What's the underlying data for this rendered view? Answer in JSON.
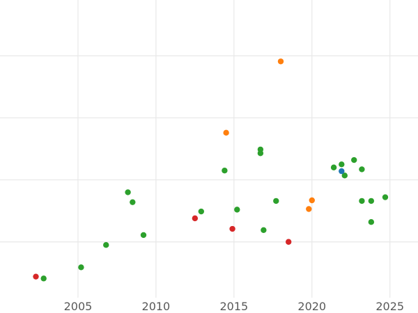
{
  "chart_data": {
    "type": "scatter",
    "title": "",
    "xlabel": "",
    "ylabel": "",
    "xlim": [
      2000.0,
      2026.8
    ],
    "ylim": [
      0.0,
      4.8
    ],
    "x_ticks": [
      2005,
      2010,
      2015,
      2020,
      2025
    ],
    "x_tick_labels": [
      "2005",
      "2010",
      "2015",
      "2020",
      "2025"
    ],
    "y_gridlines": [
      0.9,
      1.9,
      2.9,
      3.9
    ],
    "grid": true,
    "legend": "none",
    "series": [
      {
        "color": "#2ca02c",
        "points": [
          [
            2002.8,
            0.31
          ],
          [
            2005.2,
            0.49
          ],
          [
            2006.8,
            0.85
          ],
          [
            2008.2,
            1.7
          ],
          [
            2008.5,
            1.54
          ],
          [
            2009.2,
            1.01
          ],
          [
            2012.9,
            1.39
          ],
          [
            2014.4,
            2.05
          ],
          [
            2015.2,
            1.42
          ],
          [
            2016.7,
            2.39
          ],
          [
            2016.7,
            2.33
          ],
          [
            2016.9,
            1.09
          ],
          [
            2017.7,
            1.56
          ],
          [
            2021.4,
            2.1
          ],
          [
            2021.9,
            2.15
          ],
          [
            2022.1,
            1.97
          ],
          [
            2022.7,
            2.22
          ],
          [
            2023.2,
            2.07
          ],
          [
            2023.2,
            1.56
          ],
          [
            2023.8,
            1.56
          ],
          [
            2023.8,
            1.22
          ],
          [
            2024.7,
            1.62
          ]
        ]
      },
      {
        "color": "#ff7f0e",
        "points": [
          [
            2014.5,
            2.66
          ],
          [
            2018.0,
            3.81
          ],
          [
            2019.8,
            1.43
          ],
          [
            2020.0,
            1.57
          ]
        ]
      },
      {
        "color": "#d62728",
        "points": [
          [
            2002.3,
            0.34
          ],
          [
            2012.5,
            1.28
          ],
          [
            2014.9,
            1.11
          ],
          [
            2018.5,
            0.9
          ]
        ]
      },
      {
        "color": "#1f77b4",
        "points": [
          [
            2021.9,
            2.04
          ]
        ]
      }
    ]
  }
}
